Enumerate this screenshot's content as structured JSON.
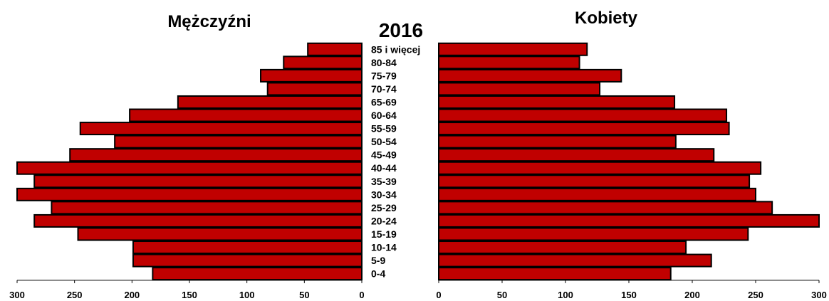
{
  "chart_data": {
    "type": "bar",
    "orientation": "horizontal",
    "title": "2016",
    "categories": [
      "0-4",
      "5-9",
      "10-14",
      "15-19",
      "20-24",
      "25-29",
      "30-34",
      "35-39",
      "40-44",
      "45-49",
      "50-54",
      "55-59",
      "60-64",
      "65-69",
      "70-74",
      "75-79",
      "80-84",
      "85 i więcej"
    ],
    "series": [
      {
        "name": "Mężczyźni",
        "values": [
          182,
          199,
          199,
          247,
          285,
          270,
          300,
          285,
          300,
          254,
          215,
          245,
          202,
          160,
          82,
          88,
          68,
          47
        ]
      },
      {
        "name": "Kobiety",
        "values": [
          183,
          215,
          195,
          244,
          301,
          263,
          250,
          245,
          254,
          217,
          187,
          229,
          227,
          186,
          127,
          144,
          111,
          117
        ]
      }
    ],
    "xlim": [
      0,
      300
    ],
    "xticks": [
      0,
      50,
      100,
      150,
      200,
      250,
      300
    ],
    "bar_color": "#c00000",
    "grid": false
  }
}
